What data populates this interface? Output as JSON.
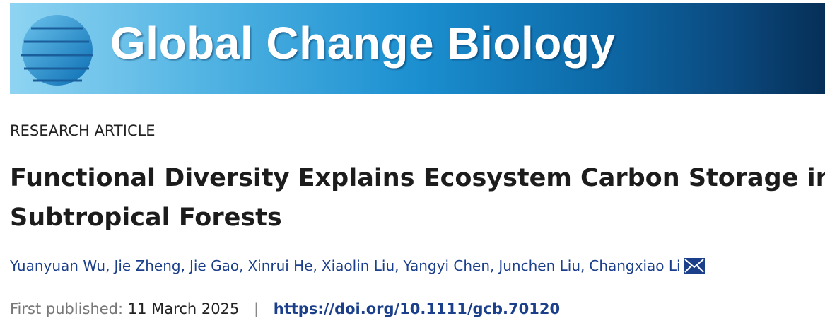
{
  "journal": {
    "title": "Global Change Biology"
  },
  "article": {
    "type": "RESEARCH ARTICLE",
    "title_line1": "Functional Diversity Explains Ecosystem Carbon Storage in",
    "title_line2": "Subtropical Forests",
    "authors": [
      "Yuanyuan Wu",
      "Jie Zheng",
      "Jie Gao",
      "Xinrui He",
      "Xiaolin Liu",
      "Yangyi Chen",
      "Junchen Liu",
      "Changxiao Li"
    ],
    "corresponding_icon": "envelope-icon",
    "published_label": "First published:",
    "published_date": "11 March 2025",
    "separator": "|",
    "doi": "https://doi.org/10.1111/gcb.70120"
  },
  "colors": {
    "link": "#1b3f8b",
    "banner_dark": "#062f57",
    "banner_light": "#8fd4f2"
  }
}
